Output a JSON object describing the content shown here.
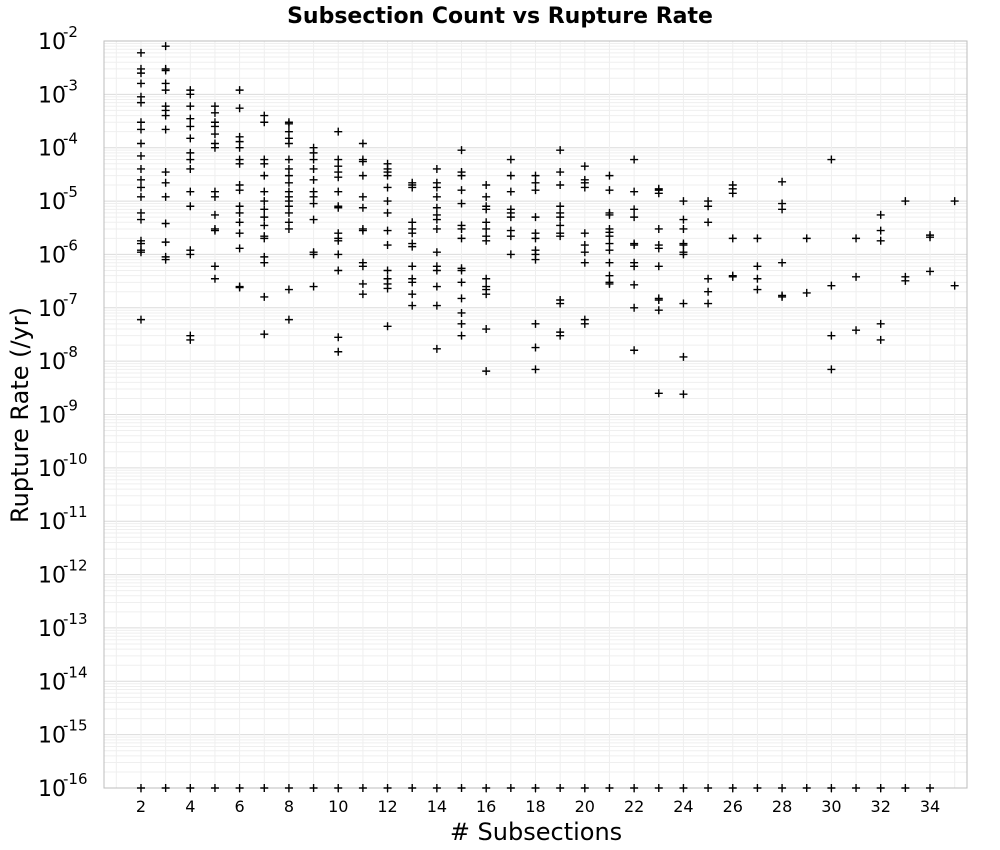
{
  "chart_data": {
    "type": "scatter",
    "title": "Subsection Count vs Rupture Rate",
    "xlabel": "# Subsections",
    "ylabel": "Rupture Rate (/yr)",
    "xlim": [
      0.5,
      35.5
    ],
    "y_scale": "log",
    "ylim": [
      1e-16,
      0.01
    ],
    "x_ticks": [
      2,
      4,
      6,
      8,
      10,
      12,
      14,
      16,
      18,
      20,
      22,
      24,
      26,
      28,
      30,
      32,
      34
    ],
    "x_tick_labels": [
      "2",
      "4",
      "6",
      "8",
      "10",
      "12",
      "14",
      "16",
      "18",
      "20",
      "22",
      "24",
      "26",
      "28",
      "30",
      "32",
      "34"
    ],
    "y_ticks": [
      {
        "base": "10",
        "exp": "-2"
      },
      {
        "base": "10",
        "exp": "-3"
      },
      {
        "base": "10",
        "exp": "-4"
      },
      {
        "base": "10",
        "exp": "-5"
      },
      {
        "base": "10",
        "exp": "-6"
      },
      {
        "base": "10",
        "exp": "-7"
      },
      {
        "base": "10",
        "exp": "-8"
      },
      {
        "base": "10",
        "exp": "-9"
      },
      {
        "base": "10",
        "exp": "-10"
      },
      {
        "base": "10",
        "exp": "-11"
      },
      {
        "base": "10",
        "exp": "-12"
      },
      {
        "base": "10",
        "exp": "-13"
      },
      {
        "base": "10",
        "exp": "-14"
      },
      {
        "base": "10",
        "exp": "-15"
      },
      {
        "base": "10",
        "exp": "-16"
      }
    ],
    "grid": true,
    "marker": "plus",
    "marker_color": "#000000",
    "zero_rate_floor_value": 1e-16,
    "zero_rate_floor_x": [
      2,
      3,
      4,
      5,
      6,
      7,
      8,
      9,
      10,
      11,
      12,
      13,
      14,
      15,
      16,
      17,
      18,
      19,
      20,
      21,
      22,
      23,
      24,
      25,
      26,
      27,
      28,
      29,
      30,
      31,
      32,
      33,
      34
    ],
    "points": [
      {
        "x": 2,
        "y": [
          0.006,
          0.003,
          0.0025,
          0.0016,
          0.0009,
          0.0007,
          0.0003,
          0.00022,
          0.00012,
          7e-05,
          4e-05,
          2.5e-05,
          1.8e-05,
          1.2e-05,
          6e-06,
          4.5e-06,
          1.8e-06,
          1.6e-06,
          1.2e-06,
          1.1e-06,
          6e-08
        ]
      },
      {
        "x": 3,
        "y": [
          0.008,
          0.003,
          0.0028,
          0.0016,
          0.0012,
          0.0006,
          0.0005,
          0.0004,
          0.00022,
          3.5e-05,
          2.2e-05,
          1.2e-05,
          3.8e-06,
          1.7e-06,
          9e-07,
          8e-07
        ]
      },
      {
        "x": 4,
        "y": [
          0.0012,
          0.001,
          0.0006,
          0.00035,
          0.00025,
          0.00015,
          8e-05,
          6e-05,
          4e-05,
          1.5e-05,
          8e-06,
          1.2e-06,
          1e-06,
          3e-08,
          2.5e-08
        ]
      },
      {
        "x": 5,
        "y": [
          0.0006,
          0.00045,
          0.0003,
          0.00025,
          0.00018,
          0.00012,
          0.0001,
          1.5e-05,
          1.2e-05,
          5.5e-06,
          3e-06,
          2.8e-06,
          6e-07,
          3.5e-07
        ]
      },
      {
        "x": 6,
        "y": [
          0.0012,
          0.00055,
          0.00016,
          0.00013,
          0.0001,
          6e-05,
          5e-05,
          2e-05,
          1.6e-05,
          8e-06,
          6e-06,
          4e-06,
          2.5e-06,
          1.3e-06,
          2.5e-07,
          2.4e-07
        ]
      },
      {
        "x": 7,
        "y": [
          0.0004,
          0.0003,
          6e-05,
          5e-05,
          3e-05,
          1.5e-05,
          1e-05,
          7e-06,
          5e-06,
          3.5e-06,
          2.2e-06,
          2e-06,
          9e-07,
          7e-07,
          1.6e-07,
          3.2e-08
        ]
      },
      {
        "x": 8,
        "y": [
          0.0003,
          0.00028,
          0.0002,
          0.00015,
          0.00012,
          6e-05,
          4e-05,
          3e-05,
          2.2e-05,
          1.5e-05,
          1.2e-05,
          1e-05,
          8e-06,
          6e-06,
          4e-06,
          3e-06,
          2.2e-07,
          6e-08
        ]
      },
      {
        "x": 9,
        "y": [
          0.0001,
          8e-05,
          6e-05,
          4e-05,
          2.5e-05,
          1.5e-05,
          1.2e-05,
          9e-06,
          4.5e-06,
          1.1e-06,
          1e-06,
          2.5e-07
        ]
      },
      {
        "x": 10,
        "y": [
          0.0002,
          6e-05,
          4.5e-05,
          3.5e-05,
          2.8e-05,
          1.5e-05,
          8e-06,
          7.5e-06,
          2.5e-06,
          2e-06,
          1.8e-06,
          1e-06,
          5e-07,
          2.8e-08,
          1.5e-08
        ]
      },
      {
        "x": 11,
        "y": [
          0.00012,
          6e-05,
          5.5e-05,
          3e-05,
          1.2e-05,
          7.5e-06,
          3e-06,
          2.8e-06,
          7e-07,
          6e-07,
          2.8e-07,
          1.8e-07
        ]
      },
      {
        "x": 12,
        "y": [
          5e-05,
          4e-05,
          3.5e-05,
          3e-05,
          1.8e-05,
          1e-05,
          6e-06,
          2.8e-06,
          1.5e-06,
          5e-07,
          3.5e-07,
          2.8e-07,
          2.3e-07,
          4.5e-08
        ]
      },
      {
        "x": 13,
        "y": [
          2.2e-05,
          2e-05,
          1.8e-05,
          4e-06,
          3e-06,
          2.5e-06,
          1.6e-06,
          1.4e-06,
          6e-07,
          3.5e-07,
          3e-07,
          1.8e-07,
          1.1e-07
        ]
      },
      {
        "x": 14,
        "y": [
          4e-05,
          2.2e-05,
          1.8e-05,
          1.2e-05,
          7.5e-06,
          5.5e-06,
          4.5e-06,
          3e-06,
          1.1e-06,
          6e-07,
          5e-07,
          2.5e-07,
          1.1e-07,
          1.7e-08
        ]
      },
      {
        "x": 15,
        "y": [
          9e-05,
          3.5e-05,
          3e-05,
          1.6e-05,
          9e-06,
          3.5e-06,
          3e-06,
          2e-06,
          5.5e-07,
          5e-07,
          3e-07,
          1.5e-07,
          8e-08,
          5e-08,
          3e-08
        ]
      },
      {
        "x": 16,
        "y": [
          2e-05,
          1.2e-05,
          8e-06,
          7e-06,
          4e-06,
          3e-06,
          2.2e-06,
          1.8e-06,
          3.5e-07,
          2.5e-07,
          2.2e-07,
          1.8e-07,
          4e-08,
          6.5e-09
        ]
      },
      {
        "x": 17,
        "y": [
          6e-05,
          3e-05,
          1.5e-05,
          7e-06,
          6e-06,
          5e-06,
          2.8e-06,
          2.2e-06,
          1e-06
        ]
      },
      {
        "x": 18,
        "y": [
          3e-05,
          2.2e-05,
          1.6e-05,
          5e-06,
          2.5e-06,
          2e-06,
          1.2e-06,
          1e-06,
          8e-07,
          5e-08,
          1.8e-08,
          7e-09
        ]
      },
      {
        "x": 19,
        "y": [
          9e-05,
          3.5e-05,
          2e-05,
          8e-06,
          6e-06,
          5e-06,
          3.5e-06,
          2.5e-06,
          2.2e-06,
          1.4e-07,
          1.2e-07,
          3.5e-08,
          3e-08
        ]
      },
      {
        "x": 20,
        "y": [
          4.5e-05,
          2.5e-05,
          2.2e-05,
          1.8e-05,
          2.5e-06,
          1.5e-06,
          1.1e-06,
          7e-07,
          6e-08,
          5e-08
        ]
      },
      {
        "x": 21,
        "y": [
          3e-05,
          1.6e-05,
          6e-06,
          5.5e-06,
          3e-06,
          2.6e-06,
          2.2e-06,
          1.6e-06,
          1.2e-06,
          7e-07,
          4e-07,
          3e-07,
          2.8e-07
        ]
      },
      {
        "x": 22,
        "y": [
          6e-05,
          1.5e-05,
          7e-06,
          5e-06,
          1.6e-06,
          1.5e-06,
          7e-07,
          6e-07,
          2.7e-07,
          1e-07,
          1.6e-08
        ]
      },
      {
        "x": 23,
        "y": [
          1.7e-05,
          1.6e-05,
          1.4e-05,
          3e-06,
          1.5e-06,
          1.3e-06,
          6e-07,
          1.5e-07,
          1.4e-07,
          9e-08,
          2.5e-09
        ]
      },
      {
        "x": 24,
        "y": [
          1e-05,
          4.5e-06,
          3e-06,
          1.6e-06,
          1.5e-06,
          1.1e-06,
          1e-06,
          1.2e-07,
          1.2e-08,
          2.4e-09
        ]
      },
      {
        "x": 25,
        "y": [
          1e-05,
          8e-06,
          4e-06,
          3.5e-07,
          2e-07,
          1.2e-07
        ]
      },
      {
        "x": 26,
        "y": [
          2e-05,
          1.7e-05,
          1.4e-05,
          2e-06,
          4e-07,
          3.8e-07
        ]
      },
      {
        "x": 27,
        "y": [
          2e-06,
          6e-07,
          3.5e-07,
          2.2e-07
        ]
      },
      {
        "x": 28,
        "y": [
          2.3e-05,
          9e-06,
          7e-06,
          7e-07,
          1.7e-07,
          1.6e-07
        ]
      },
      {
        "x": 29,
        "y": [
          2e-06,
          1.9e-07
        ]
      },
      {
        "x": 30,
        "y": [
          6e-05,
          2.6e-07,
          3e-08,
          7e-09
        ]
      },
      {
        "x": 31,
        "y": [
          2e-06,
          3.8e-07,
          3.8e-08
        ]
      },
      {
        "x": 32,
        "y": [
          5.5e-06,
          2.8e-06,
          1.8e-06,
          5e-08,
          2.5e-08
        ]
      },
      {
        "x": 33,
        "y": [
          1e-05,
          3.8e-07,
          3.2e-07
        ]
      },
      {
        "x": 34,
        "y": [
          2.3e-06,
          2.1e-06,
          4.8e-07
        ]
      },
      {
        "x": 35,
        "y": [
          1e-05,
          2.6e-07
        ]
      }
    ]
  }
}
